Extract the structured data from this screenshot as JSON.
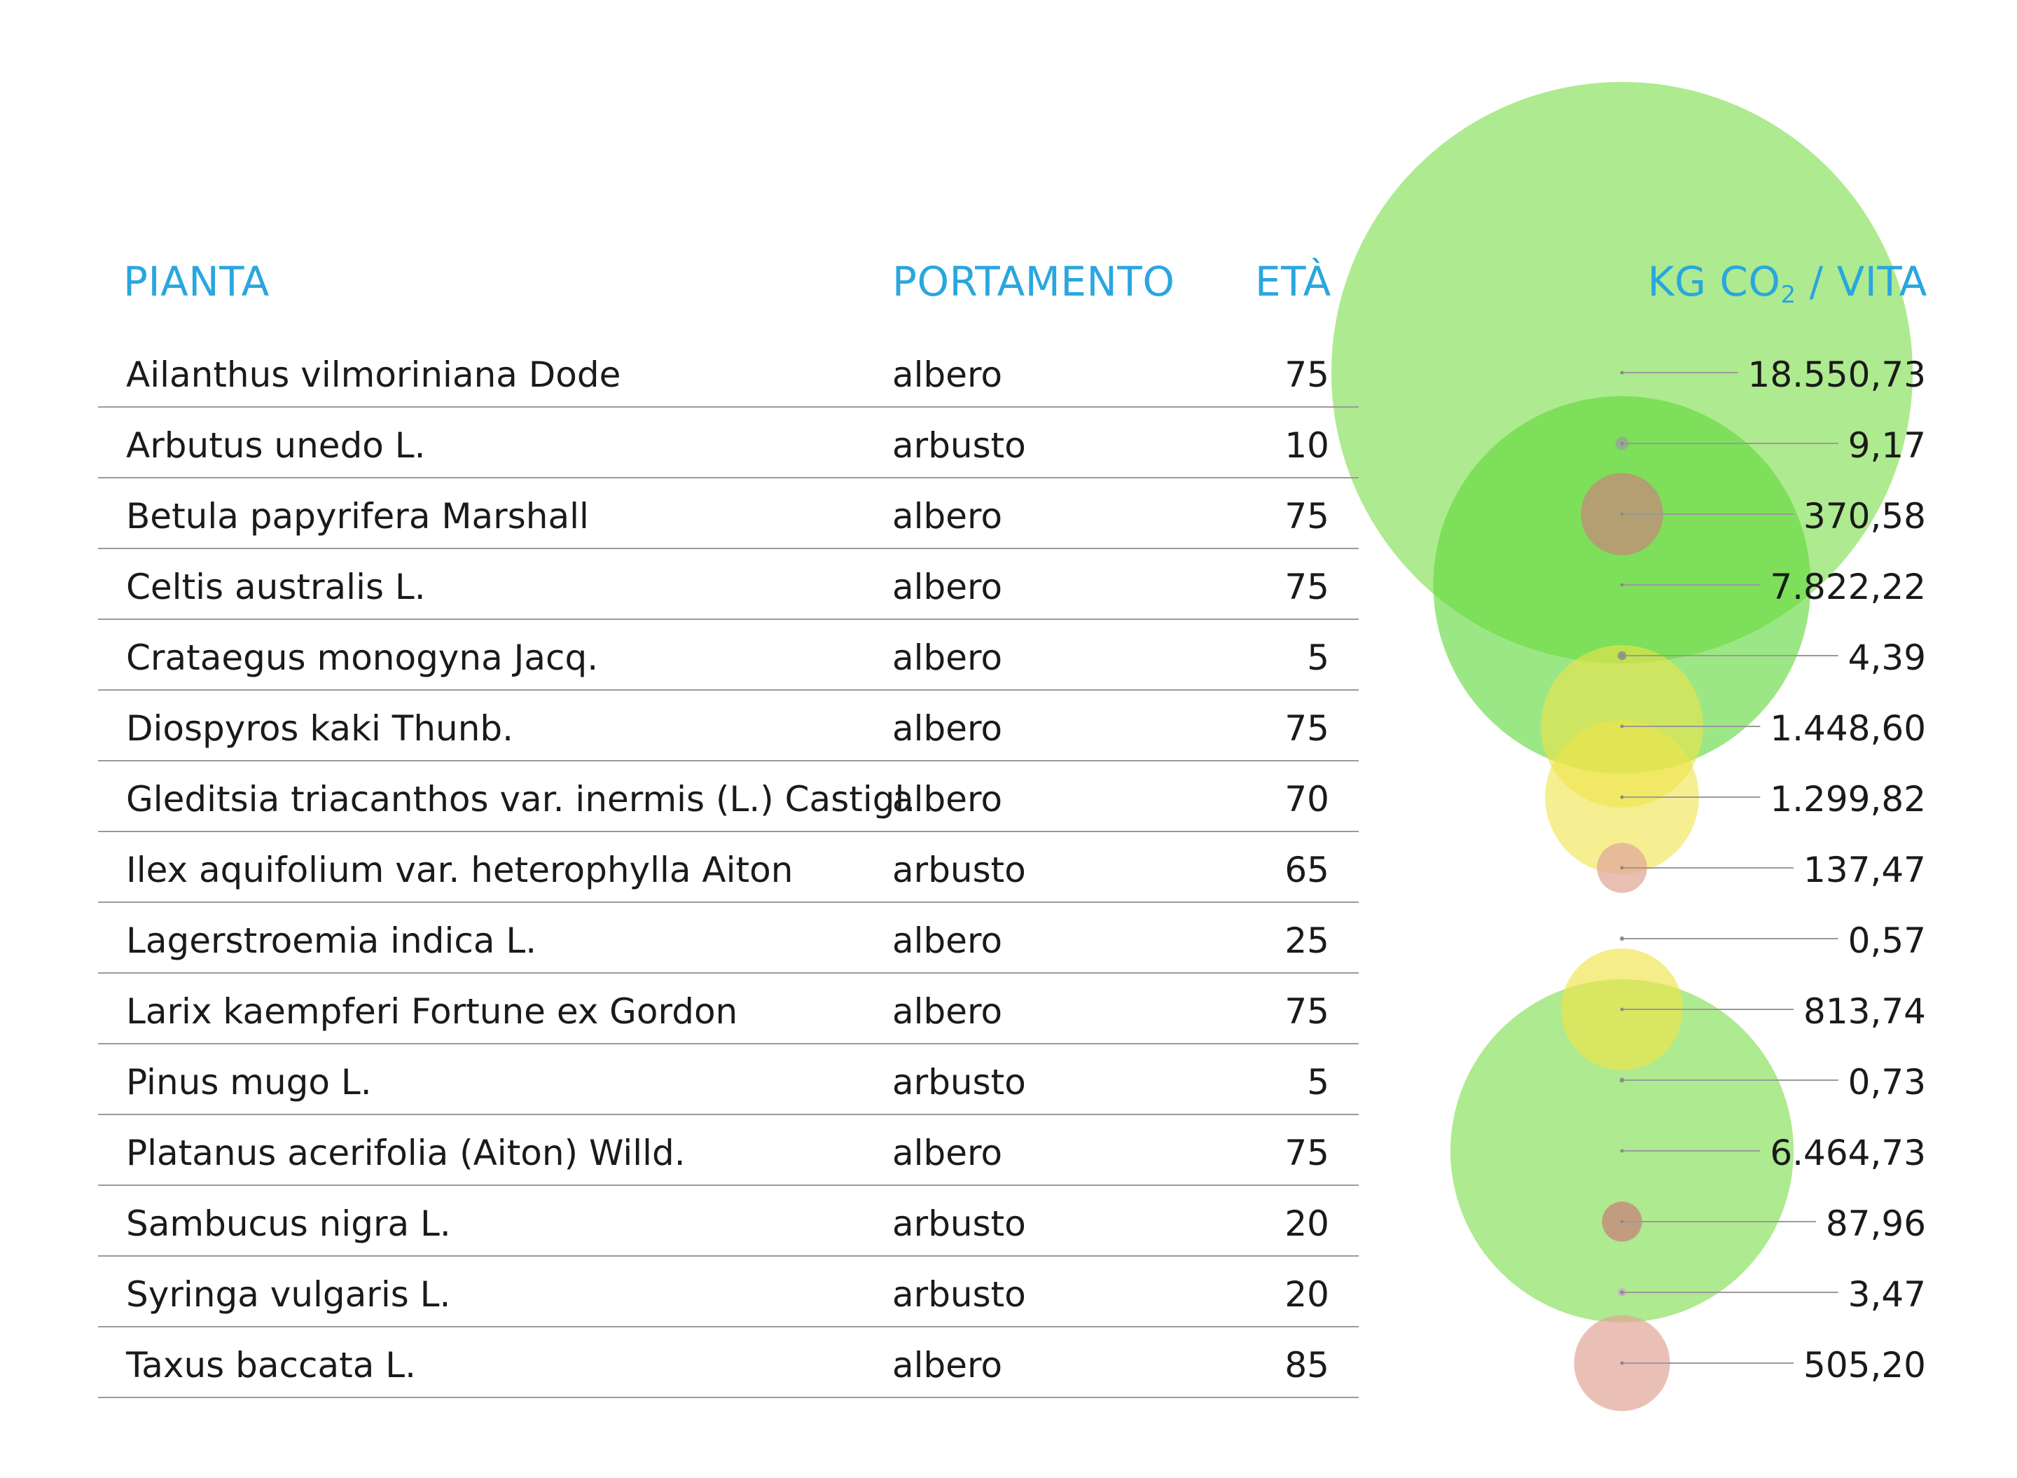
{
  "header": {
    "pianta": "PIANTA",
    "portamento": "PORTAMENTO",
    "eta": "ETÀ",
    "kg_prefix": "KG CO",
    "kg_sub": "2",
    "kg_suffix": " / VITA"
  },
  "colors": {
    "header": "#2aa6df",
    "albero_large": "#7ddd4a",
    "albero_medium": "#efe44a",
    "albero_small": "#e2a89a",
    "arbusto_small": "#a8a8a8",
    "leader_line": "#9a9a9a"
  },
  "chart_data": {
    "type": "table",
    "columns": [
      "PIANTA",
      "PORTAMENTO",
      "ETÀ",
      "KG CO2 / VITA"
    ],
    "rows": [
      {
        "pianta": "Ailanthus vilmoriniana Dode",
        "portamento": "albero",
        "eta": "75",
        "kg": "18.550,73",
        "value": 18550.73,
        "color": "#7ddd4a",
        "alpha": 0.62
      },
      {
        "pianta": "Arbutus unedo L.",
        "portamento": "arbusto",
        "eta": "10",
        "kg": "9,17",
        "value": 9.17,
        "color": "#9c9c9c",
        "alpha": 0.75
      },
      {
        "pianta": "Betula papyrifera Marshall",
        "portamento": "albero",
        "eta": "75",
        "kg": "370,58",
        "value": 370.58,
        "color": "#c5897a",
        "alpha": 0.75
      },
      {
        "pianta": "Celtis australis L.",
        "portamento": "albero",
        "eta": "75",
        "kg": "7.822,22",
        "value": 7822.22,
        "color": "#5fd83a",
        "alpha": 0.62
      },
      {
        "pianta": "Crataegus monogyna Jacq.",
        "portamento": "albero",
        "eta": "5",
        "kg": "4,39",
        "value": 4.39,
        "color": "#8a8a8a",
        "alpha": 0.8
      },
      {
        "pianta": "Diospyros kaki Thunb.",
        "portamento": "albero",
        "eta": "75",
        "kg": "1.448,60",
        "value": 1448.6,
        "color": "#efe44a",
        "alpha": 0.6
      },
      {
        "pianta": "Gleditsia triacanthos var. inermis (L.) Castigl.",
        "portamento": "albero",
        "eta": "70",
        "kg": "1.299,82",
        "value": 1299.82,
        "color": "#efe44a",
        "alpha": 0.6
      },
      {
        "pianta": "Ilex aquifolium var. heterophylla Aiton",
        "portamento": "arbusto",
        "eta": "65",
        "kg": "137,47",
        "value": 137.47,
        "color": "#e2a89a",
        "alpha": 0.75
      },
      {
        "pianta": "Lagerstroemia indica L.",
        "portamento": "albero",
        "eta": "25",
        "kg": "0,57",
        "value": 0.57,
        "color": "#c9a3d6",
        "alpha": 0.85
      },
      {
        "pianta": "Larix kaempferi Fortune ex Gordon",
        "portamento": "albero",
        "eta": "75",
        "kg": "813,74",
        "value": 813.74,
        "color": "#efe44a",
        "alpha": 0.65
      },
      {
        "pianta": "Pinus mugo L.",
        "portamento": "arbusto",
        "eta": "5",
        "kg": "0,73",
        "value": 0.73,
        "color": "#8a8a8a",
        "alpha": 0.8
      },
      {
        "pianta": "Platanus acerifolia (Aiton) Willd.",
        "portamento": "albero",
        "eta": "75",
        "kg": "6.464,73",
        "value": 6464.73,
        "color": "#7ddd4a",
        "alpha": 0.62
      },
      {
        "pianta": "Sambucus nigra L.",
        "portamento": "arbusto",
        "eta": "20",
        "kg": "87,96",
        "value": 87.96,
        "color": "#c5897a",
        "alpha": 0.8
      },
      {
        "pianta": "Syringa vulgaris L.",
        "portamento": "arbusto",
        "eta": "20",
        "kg": "3,47",
        "value": 3.47,
        "color": "#c9a3d6",
        "alpha": 0.85
      },
      {
        "pianta": "Taxus baccata L.",
        "portamento": "albero",
        "eta": "85",
        "kg": "505,20",
        "value": 505.2,
        "color": "#e2a89a",
        "alpha": 0.72
      }
    ]
  }
}
